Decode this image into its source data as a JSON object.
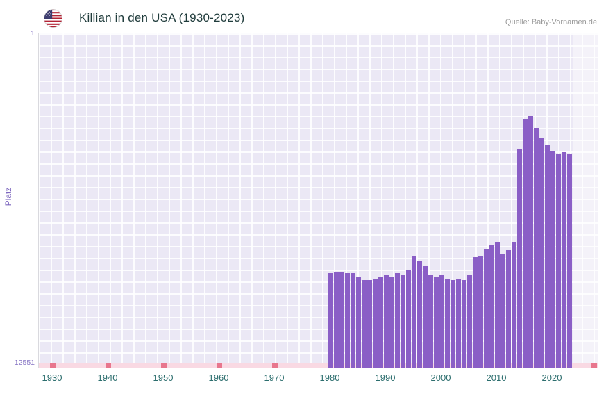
{
  "header": {
    "title": "Killian in den USA (1930-2023)",
    "source": "Quelle: Baby-Vornamen.de",
    "flag": "us-flag-icon"
  },
  "chart_data": {
    "type": "bar",
    "title": "Killian in den USA (1930-2023)",
    "xlabel": "",
    "ylabel": "Platz",
    "y_axis": {
      "min": 1,
      "max": 12551,
      "inverted": true,
      "top_tick_label": "1",
      "bottom_tick_label": "12551"
    },
    "x_ticks": [
      1930,
      1940,
      1950,
      1960,
      1970,
      1980,
      1990,
      2000,
      2010,
      2020
    ],
    "x_range": [
      1930,
      2023
    ],
    "unranked_years_range": [
      1930,
      1979
    ],
    "grid": true,
    "legend_position": "none",
    "years": [
      1980,
      1981,
      1982,
      1983,
      1984,
      1985,
      1986,
      1987,
      1988,
      1989,
      1990,
      1991,
      1992,
      1993,
      1994,
      1995,
      1996,
      1997,
      1998,
      1999,
      2000,
      2001,
      2002,
      2003,
      2004,
      2005,
      2006,
      2007,
      2008,
      2009,
      2010,
      2011,
      2012,
      2013,
      2014,
      2015,
      2016,
      2017,
      2018,
      2019,
      2020,
      2021,
      2022,
      2023
    ],
    "ranks": [
      9130,
      9080,
      9080,
      9130,
      9130,
      9260,
      9390,
      9390,
      9340,
      9260,
      9210,
      9260,
      9130,
      9210,
      9000,
      8470,
      8680,
      8870,
      9210,
      9260,
      9210,
      9340,
      9390,
      9340,
      9390,
      9210,
      8530,
      8470,
      8210,
      8080,
      7950,
      8420,
      8260,
      7950,
      4400,
      3260,
      3160,
      3600,
      4000,
      4260,
      4470,
      4580,
      4530,
      4580
    ],
    "colors": {
      "bar": "#8a5ec6",
      "plot_background": "#ebe8f5",
      "gridline": "#ffffff",
      "no_data_strip": "#f9d9e3",
      "no_data_marker": "#e8768d",
      "x_label_text": "#2c6e6e",
      "y_label_text": "#7e68bf",
      "title_text": "#203c3c",
      "source_text": "#9a9a9a"
    }
  }
}
